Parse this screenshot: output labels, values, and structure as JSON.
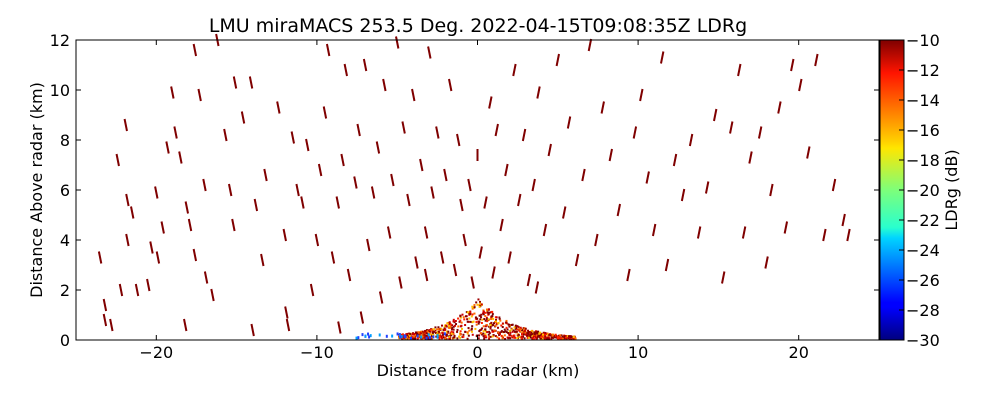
{
  "chart_data": {
    "type": "scatter",
    "title": "LMU miraMACS 253.5 Deg. 2022-04-15T09:08:35Z  LDRg",
    "xlabel": "Distance from radar (km)",
    "ylabel": "Distance Above radar  (km)",
    "xlim": [
      -25,
      25
    ],
    "ylim": [
      0,
      12
    ],
    "xticks": [
      -20,
      -10,
      0,
      10,
      20
    ],
    "xtick_labels": [
      "−20",
      "−10",
      "0",
      "10",
      "20"
    ],
    "yticks": [
      0,
      2,
      4,
      6,
      8,
      10,
      12
    ],
    "ytick_labels": [
      "0",
      "2",
      "4",
      "6",
      "8",
      "10",
      "12"
    ],
    "grid": false,
    "colorbar": {
      "label": "LDRg (dB)",
      "range": [
        -30,
        -10
      ],
      "ticks": [
        -10,
        -12,
        -14,
        -16,
        -18,
        -20,
        -22,
        -24,
        -26,
        -28,
        -30
      ],
      "tick_labels": [
        "−10",
        "−12",
        "−14",
        "−16",
        "−18",
        "−20",
        "−22",
        "−24",
        "−26",
        "−28",
        "−30"
      ],
      "colormap": "jet"
    },
    "series": [
      {
        "values_dB_typical": -10,
        "points": [
          [
            -23.5,
            3.3
          ],
          [
            -23.2,
            1.4
          ],
          [
            -23.2,
            0.8
          ],
          [
            -22.4,
            7.2
          ],
          [
            -22.2,
            2.0
          ],
          [
            -21.9,
            8.6
          ],
          [
            -21.8,
            5.6
          ],
          [
            -21.8,
            4.0
          ],
          [
            -21.5,
            5.1
          ],
          [
            -21.2,
            2.0
          ],
          [
            -20.5,
            2.2
          ],
          [
            -20.3,
            3.7
          ],
          [
            -20.0,
            5.9
          ],
          [
            -19.9,
            3.3
          ],
          [
            -19.6,
            4.5
          ],
          [
            -19.3,
            7.7
          ],
          [
            -19.0,
            9.9
          ],
          [
            -18.8,
            8.3
          ],
          [
            -18.5,
            7.3
          ],
          [
            -18.1,
            5.3
          ],
          [
            -17.9,
            4.6
          ],
          [
            -17.6,
            3.4
          ],
          [
            -17.6,
            11.6
          ],
          [
            -17.3,
            9.8
          ],
          [
            -17.0,
            6.2
          ],
          [
            -16.9,
            2.5
          ],
          [
            -16.5,
            1.8
          ],
          [
            -16.2,
            12.0
          ],
          [
            -15.7,
            8.2
          ],
          [
            -15.4,
            6.0
          ],
          [
            -15.2,
            4.6
          ],
          [
            -15.1,
            10.3
          ],
          [
            -14.6,
            8.9
          ],
          [
            -14.1,
            10.3
          ],
          [
            -13.8,
            5.4
          ],
          [
            -13.4,
            3.2
          ],
          [
            -13.2,
            6.6
          ],
          [
            -12.4,
            9.3
          ],
          [
            -12.0,
            4.2
          ],
          [
            -11.9,
            1.1
          ],
          [
            -11.5,
            8.1
          ],
          [
            -11.2,
            6.0
          ],
          [
            -10.9,
            5.5
          ],
          [
            -10.6,
            7.8
          ],
          [
            -10.3,
            2.0
          ],
          [
            -10.0,
            4.0
          ],
          [
            -9.8,
            6.8
          ],
          [
            -9.5,
            9.1
          ],
          [
            -9.3,
            11.6
          ],
          [
            -9.0,
            3.3
          ],
          [
            -8.7,
            5.5
          ],
          [
            -8.4,
            7.2
          ],
          [
            -8.2,
            10.8
          ],
          [
            -8.0,
            2.6
          ],
          [
            -7.6,
            6.3
          ],
          [
            -7.4,
            8.4
          ],
          [
            -7.0,
            11.0
          ],
          [
            -6.8,
            3.8
          ],
          [
            -6.5,
            5.9
          ],
          [
            -6.2,
            7.7
          ],
          [
            -6.0,
            1.7
          ],
          [
            -5.8,
            10.2
          ],
          [
            -5.5,
            4.3
          ],
          [
            -5.3,
            6.4
          ],
          [
            -5.0,
            11.9
          ],
          [
            -4.8,
            2.3
          ],
          [
            -4.6,
            8.5
          ],
          [
            -4.3,
            5.6
          ],
          [
            -4.0,
            9.8
          ],
          [
            -3.8,
            3.1
          ],
          [
            -3.5,
            7.0
          ],
          [
            -3.2,
            4.3
          ],
          [
            -3.0,
            11.5
          ],
          [
            -2.8,
            5.9
          ],
          [
            -2.5,
            8.3
          ],
          [
            -2.2,
            3.3
          ],
          [
            -2.0,
            6.6
          ],
          [
            -1.7,
            10.2
          ],
          [
            -1.4,
            2.8
          ],
          [
            -1.2,
            8.0
          ],
          [
            -1.0,
            5.4
          ],
          [
            -0.8,
            4.0
          ],
          [
            -0.5,
            6.2
          ],
          [
            -0.3,
            2.3
          ],
          [
            0.0,
            7.4
          ],
          [
            0.2,
            3.5
          ],
          [
            0.5,
            5.5
          ],
          [
            0.8,
            9.5
          ],
          [
            1.0,
            2.7
          ],
          [
            1.2,
            8.4
          ],
          [
            1.5,
            4.6
          ],
          [
            1.8,
            6.8
          ],
          [
            2.0,
            3.3
          ],
          [
            2.3,
            10.8
          ],
          [
            2.6,
            5.6
          ],
          [
            2.9,
            8.2
          ],
          [
            3.2,
            2.4
          ],
          [
            3.5,
            6.2
          ],
          [
            3.8,
            9.9
          ],
          [
            4.2,
            4.4
          ],
          [
            4.5,
            7.6
          ],
          [
            5.0,
            11.2
          ],
          [
            5.4,
            5.1
          ],
          [
            5.7,
            8.7
          ],
          [
            6.2,
            3.2
          ],
          [
            6.6,
            6.6
          ],
          [
            7.0,
            11.8
          ],
          [
            7.4,
            4.0
          ],
          [
            7.8,
            9.3
          ],
          [
            8.3,
            7.4
          ],
          [
            8.8,
            5.2
          ],
          [
            9.4,
            2.6
          ],
          [
            9.8,
            8.3
          ],
          [
            10.2,
            9.8
          ],
          [
            10.6,
            6.5
          ],
          [
            11.0,
            4.4
          ],
          [
            11.5,
            11.3
          ],
          [
            11.8,
            3.0
          ],
          [
            12.3,
            7.2
          ],
          [
            12.8,
            5.8
          ],
          [
            13.3,
            8.0
          ],
          [
            13.8,
            4.3
          ],
          [
            14.3,
            6.1
          ],
          [
            14.8,
            9.0
          ],
          [
            15.3,
            2.5
          ],
          [
            15.8,
            8.5
          ],
          [
            16.3,
            10.8
          ],
          [
            16.6,
            4.3
          ],
          [
            17.0,
            7.3
          ],
          [
            17.6,
            8.3
          ],
          [
            18.0,
            3.1
          ],
          [
            18.3,
            6.0
          ],
          [
            18.8,
            9.3
          ],
          [
            19.2,
            4.5
          ],
          [
            19.6,
            11.0
          ],
          [
            20.1,
            10.2
          ],
          [
            20.6,
            7.5
          ],
          [
            21.1,
            11.2
          ],
          [
            21.6,
            4.2
          ],
          [
            22.2,
            6.2
          ],
          [
            22.8,
            4.8
          ],
          [
            23.1,
            4.2
          ],
          [
            -22.8,
            0.6
          ],
          [
            -18.2,
            0.6
          ],
          [
            -14.0,
            0.4
          ],
          [
            -11.8,
            0.6
          ],
          [
            -8.6,
            0.5
          ],
          [
            -7.2,
            0.9
          ],
          [
            -3.2,
            2.6
          ],
          [
            3.7,
            2.1
          ]
        ]
      }
    ]
  }
}
